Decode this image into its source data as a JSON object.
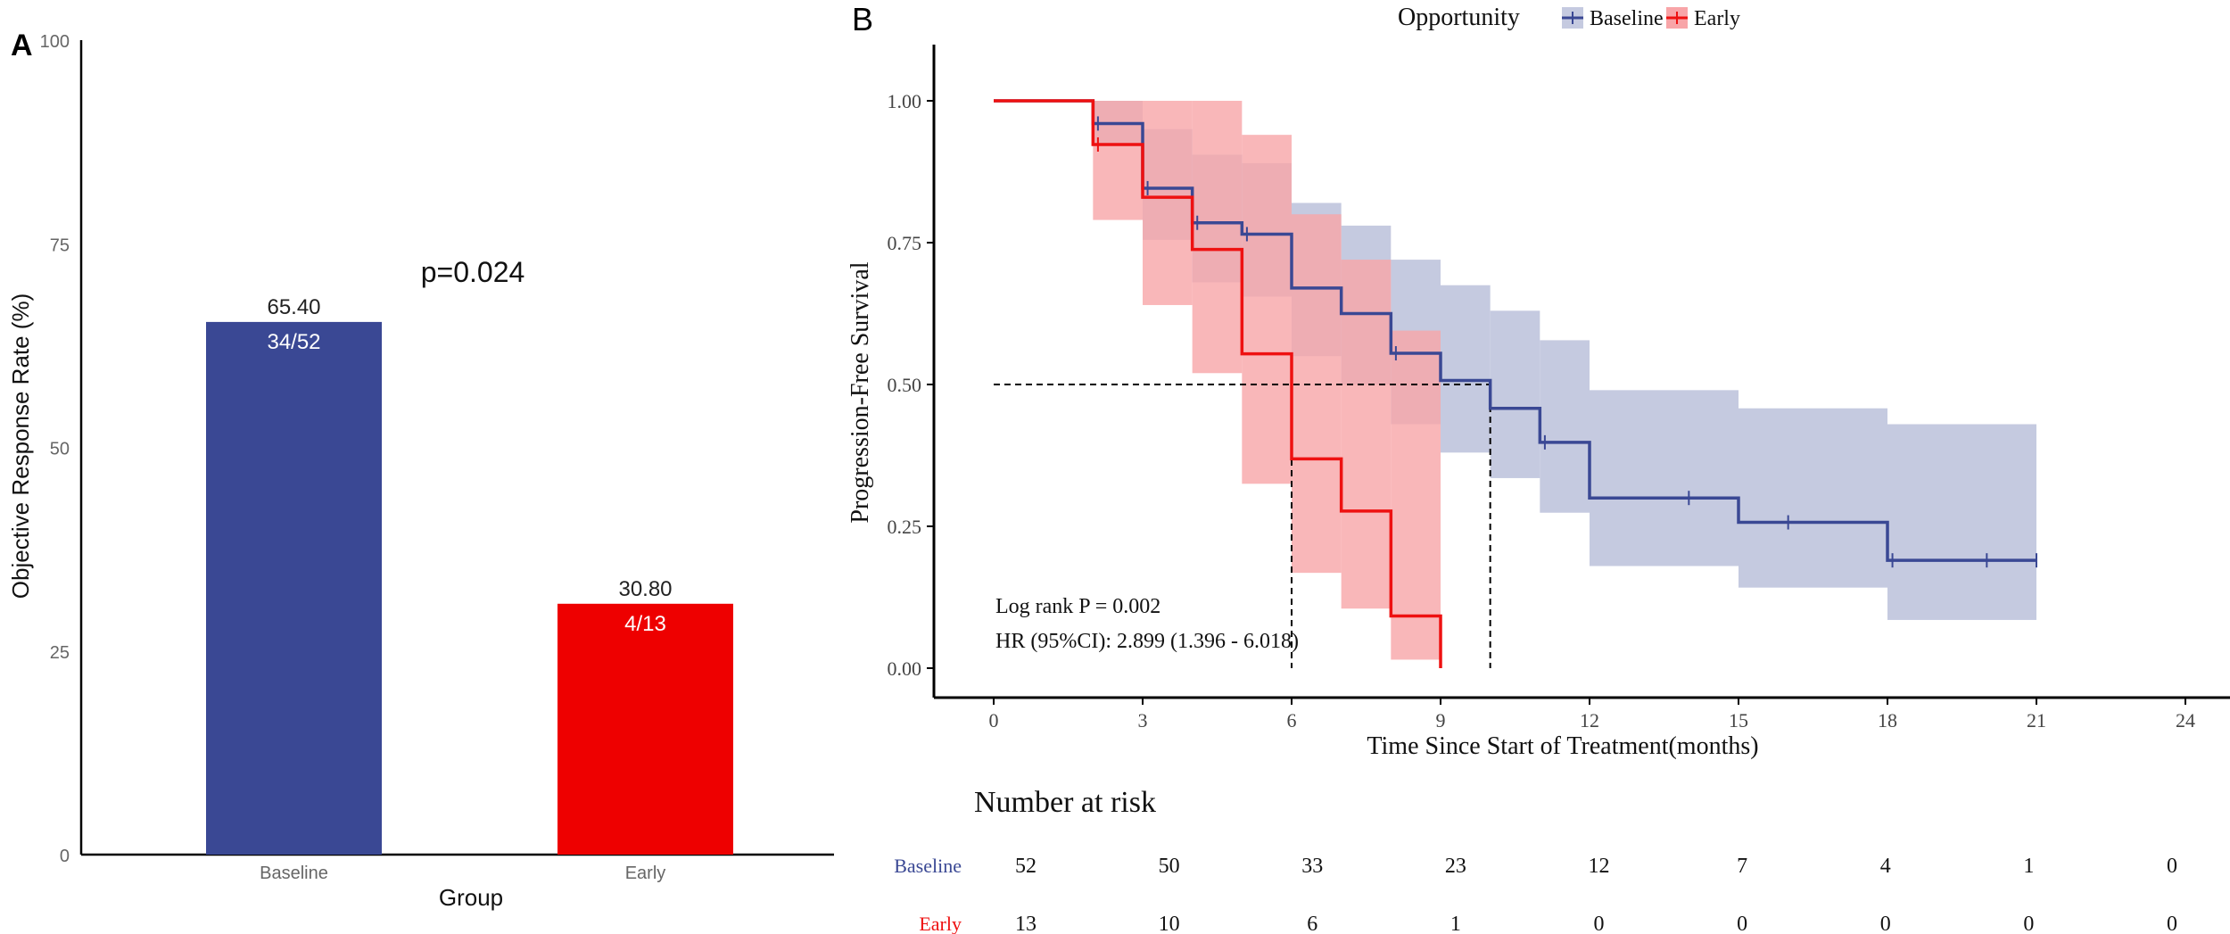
{
  "chart_data": [
    {
      "panel": "A",
      "type": "bar",
      "title": "",
      "xlabel": "Group",
      "ylabel": "Objective Response Rate (%)",
      "ylim": [
        0,
        100
      ],
      "yticks": [
        "0",
        "25",
        "50",
        "75",
        "100"
      ],
      "categories": [
        "Baseline",
        "Early"
      ],
      "values": [
        65.4,
        30.8
      ],
      "value_labels": [
        "65.40",
        "30.80"
      ],
      "inner_labels": [
        "34/52",
        "4/13"
      ],
      "colors": [
        "#3a4894",
        "#ee0000"
      ],
      "annotation": "p=0.024"
    },
    {
      "panel": "B",
      "type": "line",
      "subtype": "kaplan-meier step",
      "xlabel": "Time Since Start of Treatment(months)",
      "ylabel": "Progression-Free Survival",
      "xlim": [
        0,
        24
      ],
      "ylim": [
        0,
        1
      ],
      "xticks": [
        "0",
        "3",
        "6",
        "9",
        "12",
        "15",
        "18",
        "21",
        "24"
      ],
      "yticks": [
        "0.00",
        "0.25",
        "0.50",
        "0.75",
        "1.00"
      ],
      "legend": {
        "title": "Opportunity",
        "position": "top",
        "entries": [
          "Baseline",
          "Early"
        ]
      },
      "series": [
        {
          "name": "Baseline",
          "color": "#3a4894",
          "fill": "#c5cae0",
          "steps": [
            [
              0,
              1.0
            ],
            [
              2,
              0.96
            ],
            [
              3,
              0.846
            ],
            [
              4,
              0.785
            ],
            [
              5,
              0.765
            ],
            [
              6,
              0.67
            ],
            [
              7,
              0.625
            ],
            [
              8,
              0.555
            ],
            [
              9,
              0.507
            ],
            [
              10,
              0.458
            ],
            [
              11,
              0.398
            ],
            [
              12,
              0.3
            ],
            [
              15,
              0.257
            ],
            [
              18,
              0.19
            ]
          ],
          "end": 21,
          "ci": [
            [
              0,
              1.0,
              1.0
            ],
            [
              2,
              1.0,
              0.92
            ],
            [
              3,
              0.95,
              0.755
            ],
            [
              4,
              0.905,
              0.68
            ],
            [
              5,
              0.89,
              0.655
            ],
            [
              6,
              0.82,
              0.55
            ],
            [
              7,
              0.78,
              0.5
            ],
            [
              8,
              0.72,
              0.43
            ],
            [
              9,
              0.675,
              0.38
            ],
            [
              10,
              0.63,
              0.335
            ],
            [
              11,
              0.578,
              0.274
            ],
            [
              12,
              0.49,
              0.18
            ],
            [
              15,
              0.458,
              0.142
            ],
            [
              18,
              0.43,
              0.085
            ]
          ],
          "censored": [
            [
              2.1,
              0.96
            ],
            [
              3.1,
              0.846
            ],
            [
              4.1,
              0.785
            ],
            [
              5.1,
              0.765
            ],
            [
              8.1,
              0.555
            ],
            [
              11.1,
              0.398
            ],
            [
              14,
              0.3
            ],
            [
              16,
              0.257
            ],
            [
              18.1,
              0.19
            ],
            [
              20,
              0.19
            ],
            [
              21,
              0.19
            ]
          ]
        },
        {
          "name": "Early",
          "color": "#ee1111",
          "fill": "#f8a5a8",
          "steps": [
            [
              0,
              1.0
            ],
            [
              2,
              0.923
            ],
            [
              3,
              0.83
            ],
            [
              4,
              0.738
            ],
            [
              5,
              0.554
            ],
            [
              6,
              0.369
            ],
            [
              7,
              0.277
            ],
            [
              8,
              0.092
            ],
            [
              9,
              0.0
            ]
          ],
          "end": 9,
          "ci": [
            [
              0,
              1.0,
              1.0
            ],
            [
              2,
              1.0,
              0.79
            ],
            [
              3,
              1.0,
              0.64
            ],
            [
              4,
              1.0,
              0.52
            ],
            [
              5,
              0.94,
              0.325
            ],
            [
              6,
              0.8,
              0.168
            ],
            [
              7,
              0.72,
              0.105
            ],
            [
              8,
              0.595,
              0.015
            ]
          ],
          "censored": [
            [
              2.1,
              0.923
            ]
          ]
        }
      ],
      "median_lines": {
        "y": 0.5,
        "x": [
          6,
          10
        ]
      },
      "annotations": [
        "Log rank P = 0.002",
        "HR (95%CI): 2.899 (1.396 - 6.018)"
      ],
      "risk_table": {
        "title": "Number at risk",
        "times": [
          0,
          3,
          6,
          9,
          12,
          15,
          18,
          21,
          24
        ],
        "rows": [
          {
            "name": "Baseline",
            "color": "#3a4894",
            "values": [
              "52",
              "50",
              "33",
              "23",
              "12",
              "7",
              "4",
              "1",
              "0"
            ]
          },
          {
            "name": "Early",
            "color": "#ee1111",
            "values": [
              "13",
              "10",
              "6",
              "1",
              "0",
              "0",
              "0",
              "0",
              "0"
            ]
          }
        ]
      }
    }
  ],
  "panel_labels": [
    "A",
    "B"
  ]
}
